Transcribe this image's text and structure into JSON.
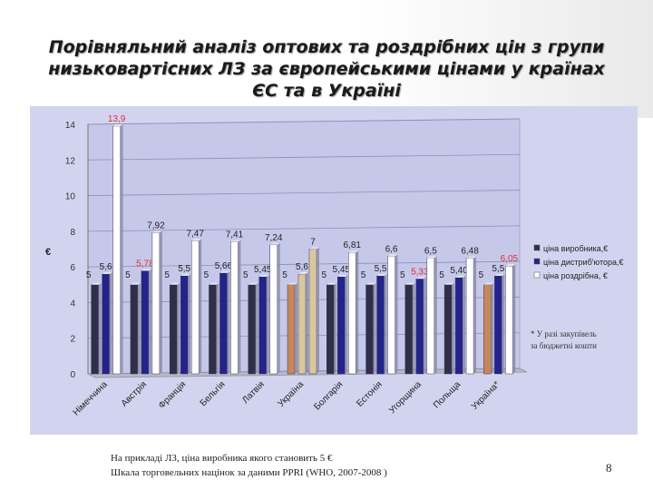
{
  "slide": {
    "title_lines": [
      "Порівняльний аналіз оптових та роздрібних цін з групи",
      "низьковартісних ЛЗ  за європейськими цінами у країнах",
      "ЄС та в Україні"
    ],
    "footnotes": [
      "На прикладі ЛЗ, ціна виробника якого становить 5 €",
      "Шкала торговельних націнок за даними PPRI (WHO, 2007-2008 )"
    ],
    "page_number": "8"
  },
  "chart_data": {
    "type": "bar",
    "ylabel": "€",
    "ylim": [
      0,
      14
    ],
    "yticks": [
      0,
      2,
      4,
      6,
      8,
      10,
      12,
      14
    ],
    "grid": true,
    "legend_position": "right",
    "categories": [
      "Німеччина",
      "Австрія",
      "Франція",
      "Бельгія",
      "Латвія",
      "Україна",
      "Болгарія",
      "Естонія",
      "Угорщина",
      "Польща",
      "Україна*"
    ],
    "series": [
      {
        "name": "ціна виробника,€",
        "values": [
          5,
          5,
          5,
          5,
          5,
          5,
          5,
          5,
          5,
          5,
          5
        ]
      },
      {
        "name": "ціна дистриб'ютора,€",
        "values": [
          5.6,
          5.78,
          5.5,
          5.66,
          5.45,
          5.6,
          5.45,
          5.5,
          5.33,
          5.4,
          5.5
        ]
      },
      {
        "name": "ціна роздрібна, €",
        "values": [
          13.9,
          7.92,
          7.47,
          7.41,
          7.24,
          7,
          6.81,
          6.6,
          6.5,
          6.48,
          6.05
        ]
      }
    ],
    "data_labels": [
      [
        "5",
        "5,6",
        "13,9"
      ],
      [
        "5",
        "5,78",
        "7,92"
      ],
      [
        "5",
        "5,5",
        "7,47"
      ],
      [
        "5",
        "5,66",
        "7,41"
      ],
      [
        "5",
        "5,45",
        "7,24"
      ],
      [
        "5",
        "5,6",
        "7"
      ],
      [
        "5",
        "5,45",
        "6,81"
      ],
      [
        "5",
        "5,5",
        "6,6"
      ],
      [
        "5",
        "5,33",
        "6,5"
      ],
      [
        "5",
        "5,40",
        "6,48"
      ],
      [
        "5",
        "5,5",
        "6,05"
      ]
    ],
    "highlight_labels": [
      "13,9",
      "5,78",
      "5,33",
      "6,05"
    ],
    "annotation_lines": [
      "* У разі закупівель",
      "за бюджетні кошти"
    ],
    "colors": {
      "producer": "#2f2f4a",
      "distributor": "#23238c",
      "retail": "#ffffff",
      "ukraine_highlight": "#c8875a",
      "ukraine_retail_highlight": "#d9c7a0",
      "highlight_label": "#e03030",
      "panel": "#d2d4ef",
      "plot": "#c6c8ea"
    }
  }
}
